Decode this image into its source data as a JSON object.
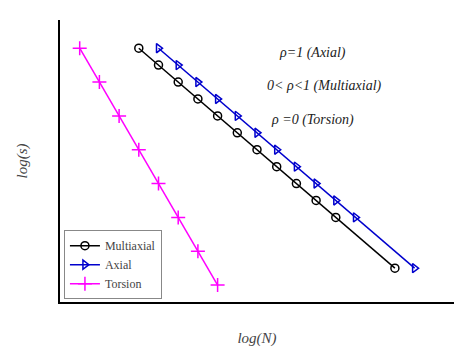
{
  "chart_data": {
    "type": "line",
    "xlabel": "log(N)",
    "ylabel": "log(s)",
    "annotations": [
      "ρ=1 (Axial)",
      "0< ρ<1 (Multiaxial)",
      "ρ =0 (Torsion)"
    ],
    "series": [
      {
        "name": "Multiaxial",
        "color": "#000000",
        "marker": "circle",
        "line_style": "solid",
        "x": [
          2.0,
          2.5,
          3.0,
          3.5,
          4.0,
          4.5,
          5.0,
          5.5,
          6.0,
          6.5,
          7.0,
          8.5
        ],
        "values": [
          9.0,
          8.4,
          7.8,
          7.2,
          6.6,
          6.0,
          5.4,
          4.8,
          4.2,
          3.6,
          3.0,
          1.2
        ]
      },
      {
        "name": "Axial",
        "color": "#0000cd",
        "marker": "triangle-right",
        "line_style": "solid",
        "x": [
          2.5,
          3.0,
          3.5,
          4.0,
          4.5,
          5.0,
          5.5,
          6.0,
          6.5,
          7.0,
          7.5,
          9.0
        ],
        "values": [
          9.0,
          8.4,
          7.8,
          7.2,
          6.6,
          6.0,
          5.4,
          4.8,
          4.2,
          3.6,
          3.0,
          1.2
        ]
      },
      {
        "name": "Torsion",
        "color": "#ff00ff",
        "marker": "cross",
        "line_style": "solid",
        "x": [
          0.5,
          1.0,
          1.5,
          2.0,
          2.5,
          3.0,
          3.5,
          4.0
        ],
        "values": [
          9.0,
          7.8,
          6.6,
          5.4,
          4.2,
          3.0,
          1.8,
          0.6
        ]
      }
    ],
    "xlim": [
      0,
      10
    ],
    "ylim": [
      0,
      10
    ],
    "tick_labels": false,
    "grid": false,
    "legend": "lower left"
  }
}
